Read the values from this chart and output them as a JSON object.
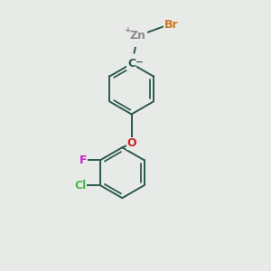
{
  "background_color": "#e8eae8",
  "bond_color": "#2a5a4a",
  "bond_width": 1.4,
  "atom_colors": {
    "Zn": "#888888",
    "Br": "#cc7722",
    "C": "#2a5a4a",
    "O": "#cc2222",
    "F": "#cc22cc",
    "Cl": "#44bb44"
  },
  "font_size_atom": 9,
  "font_size_charge": 6.5
}
